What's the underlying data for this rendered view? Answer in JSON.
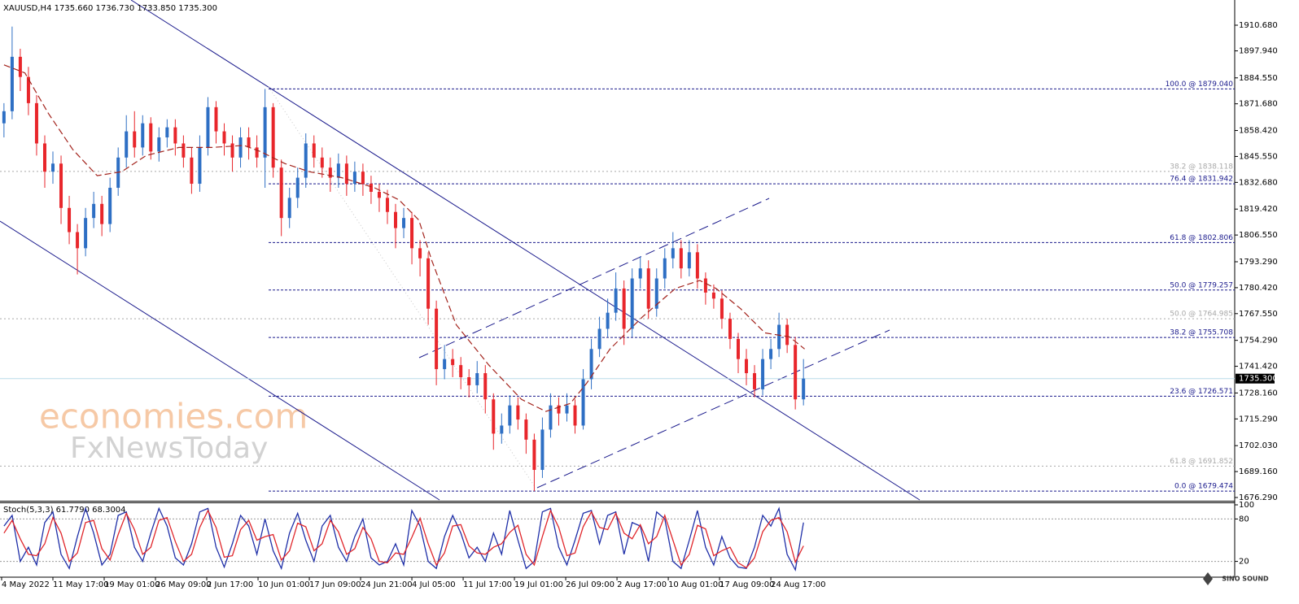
{
  "chart_data": [
    {
      "type": "candlestick",
      "title": "XAUUSD,H4 1735.660 1736.730 1733.850 1735.300",
      "x": [
        2,
        9,
        16,
        23,
        30,
        37,
        44,
        51,
        58,
        65,
        72,
        79,
        86,
        93,
        100,
        107,
        114,
        121,
        128,
        135,
        142,
        149,
        156,
        163,
        170,
        177,
        184,
        191,
        198,
        205,
        212,
        219,
        226,
        233,
        240,
        247,
        254,
        261,
        268,
        275,
        282,
        289,
        296,
        303,
        310,
        317,
        324,
        331,
        338,
        345,
        352,
        359,
        366,
        373,
        380,
        387,
        394,
        401,
        408,
        415,
        422,
        429,
        436,
        443,
        450,
        457,
        464,
        471,
        478,
        485,
        492,
        499,
        506,
        513,
        520,
        527,
        534,
        541,
        548,
        555,
        562,
        569,
        576,
        583,
        590,
        597,
        604,
        611,
        618,
        625,
        632,
        639,
        646,
        653,
        660,
        667,
        674,
        681,
        688
      ],
      "open": [
        1862,
        1868,
        1895,
        1885,
        1872,
        1852,
        1838,
        1842,
        1820,
        1808,
        1800,
        1815,
        1822,
        1812,
        1830,
        1845,
        1858,
        1850,
        1862,
        1848,
        1855,
        1860,
        1852,
        1845,
        1832,
        1850,
        1870,
        1858,
        1852,
        1845,
        1855,
        1850,
        1845,
        1870,
        1840,
        1815,
        1825,
        1835,
        1852,
        1845,
        1840,
        1835,
        1842,
        1832,
        1838,
        1832,
        1828,
        1825,
        1818,
        1810,
        1815,
        1800,
        1795,
        1770,
        1740,
        1745,
        1742,
        1736,
        1732,
        1738,
        1725,
        1708,
        1712,
        1722,
        1715,
        1705,
        1690,
        1710,
        1722,
        1718,
        1722,
        1712,
        1735,
        1750,
        1760,
        1768,
        1780,
        1760,
        1785,
        1790,
        1770,
        1785,
        1795,
        1800,
        1790,
        1798,
        1785,
        1778,
        1775,
        1765,
        1755,
        1745,
        1738,
        1730,
        1745,
        1750,
        1762,
        1752,
        1725
      ],
      "high": [
        1872,
        1910,
        1899,
        1890,
        1876,
        1856,
        1848,
        1846,
        1826,
        1812,
        1820,
        1828,
        1826,
        1835,
        1850,
        1866,
        1868,
        1866,
        1865,
        1860,
        1864,
        1864,
        1856,
        1850,
        1856,
        1875,
        1873,
        1862,
        1856,
        1860,
        1860,
        1856,
        1879.04,
        1872,
        1844,
        1830,
        1840,
        1857,
        1856,
        1850,
        1845,
        1847,
        1846,
        1843,
        1842,
        1836,
        1832,
        1829,
        1822,
        1820,
        1818,
        1804,
        1798,
        1774,
        1752,
        1750,
        1746,
        1740,
        1744,
        1742,
        1728,
        1718,
        1727,
        1726,
        1718,
        1708,
        1716,
        1728,
        1726,
        1728,
        1725,
        1740,
        1755,
        1766,
        1775,
        1788,
        1784,
        1790,
        1796,
        1794,
        1790,
        1800,
        1808,
        1804,
        1804,
        1802,
        1788,
        1782,
        1779,
        1768,
        1758,
        1750,
        1742,
        1750,
        1755,
        1768,
        1765,
        1756,
        1745
      ],
      "low": [
        1855,
        1864,
        1878,
        1866,
        1846,
        1830,
        1832,
        1812,
        1802,
        1787,
        1796,
        1810,
        1806,
        1808,
        1826,
        1840,
        1845,
        1846,
        1844,
        1843,
        1850,
        1846,
        1840,
        1827,
        1828,
        1846,
        1852,
        1846,
        1838,
        1840,
        1844,
        1840,
        1830,
        1835,
        1806,
        1810,
        1820,
        1830,
        1840,
        1835,
        1828,
        1830,
        1826,
        1828,
        1826,
        1822,
        1818,
        1812,
        1800,
        1805,
        1792,
        1786,
        1762,
        1732,
        1735,
        1736,
        1730,
        1726,
        1728,
        1718,
        1700,
        1703,
        1708,
        1710,
        1698,
        1679.47,
        1686,
        1706,
        1712,
        1714,
        1708,
        1710,
        1730,
        1746,
        1756,
        1764,
        1752,
        1756,
        1780,
        1765,
        1766,
        1780,
        1790,
        1785,
        1786,
        1780,
        1772,
        1770,
        1760,
        1750,
        1738,
        1732,
        1726,
        1727,
        1740,
        1746,
        1748,
        1720,
        1722
      ],
      "close": [
        1868,
        1895,
        1885,
        1872,
        1852,
        1838,
        1842,
        1820,
        1808,
        1800,
        1815,
        1822,
        1812,
        1830,
        1845,
        1858,
        1850,
        1862,
        1848,
        1855,
        1860,
        1852,
        1845,
        1832,
        1850,
        1870,
        1858,
        1852,
        1845,
        1855,
        1850,
        1845,
        1870,
        1840,
        1815,
        1825,
        1835,
        1852,
        1845,
        1840,
        1835,
        1842,
        1832,
        1838,
        1832,
        1828,
        1825,
        1818,
        1810,
        1815,
        1800,
        1795,
        1770,
        1740,
        1745,
        1742,
        1736,
        1732,
        1738,
        1725,
        1708,
        1712,
        1722,
        1715,
        1705,
        1690,
        1710,
        1722,
        1718,
        1722,
        1712,
        1735,
        1750,
        1760,
        1768,
        1780,
        1760,
        1785,
        1790,
        1770,
        1785,
        1795,
        1800,
        1790,
        1798,
        1785,
        1778,
        1775,
        1765,
        1755,
        1745,
        1738,
        1730,
        1745,
        1750,
        1762,
        1752,
        1725,
        1735.3
      ],
      "up_color": "#2e6fc4",
      "down_color": "#e8262b",
      "ma": {
        "x": [
          2,
          20,
          40,
          61,
          82,
          103,
          124,
          152,
          180,
          208,
          222,
          243,
          264,
          292,
          320,
          341,
          358,
          369,
          390,
          418,
          446,
          467,
          488,
          502,
          522,
          550,
          578,
          599,
          613,
          634,
          655,
          676,
          689
        ],
        "values": [
          1891,
          1887,
          1867,
          1849,
          1836,
          1838,
          1846,
          1850,
          1850,
          1851,
          1848,
          1842,
          1838,
          1835,
          1830,
          1824,
          1814,
          1794,
          1762,
          1742,
          1725,
          1719,
          1723,
          1733,
          1750,
          1766,
          1780,
          1784,
          1780,
          1770,
          1758,
          1756,
          1750
        ],
        "color": "#a3231c"
      },
      "xlim": [
        -1.4,
        1058
      ],
      "ylim": [
        1675.08,
        1923.19
      ],
      "yticks": [
        {
          "value": 1910.68,
          "label": "1910.680"
        },
        {
          "value": 1897.94,
          "label": "1897.940"
        },
        {
          "value": 1884.55,
          "label": "1884.550"
        },
        {
          "value": 1871.68,
          "label": "1871.680"
        },
        {
          "value": 1858.42,
          "label": "1858.420"
        },
        {
          "value": 1845.55,
          "label": "1845.550"
        },
        {
          "value": 1832.68,
          "label": "1832.680"
        },
        {
          "value": 1819.42,
          "label": "1819.420"
        },
        {
          "value": 1806.55,
          "label": "1806.550"
        },
        {
          "value": 1793.29,
          "label": "1793.290"
        },
        {
          "value": 1780.42,
          "label": "1780.420"
        },
        {
          "value": 1767.55,
          "label": "1767.550"
        },
        {
          "value": 1754.29,
          "label": "1754.290"
        },
        {
          "value": 1741.42,
          "label": "1741.420"
        },
        {
          "value": 1728.16,
          "label": "1728.160"
        },
        {
          "value": 1715.29,
          "label": "1715.290"
        },
        {
          "value": 1702.03,
          "label": "1702.030"
        },
        {
          "value": 1689.16,
          "label": "1689.160"
        },
        {
          "value": 1676.29,
          "label": "1676.290"
        }
      ],
      "fib_levels": [
        {
          "label": "100.0 @ 1879.040",
          "value": 1879.04,
          "color": "#1a1a8c",
          "style": "dashed"
        },
        {
          "label": "38.2 @ 1838.118",
          "value": 1838.118,
          "color": "#a8a8a8",
          "style": "dotted"
        },
        {
          "label": "76.4 @ 1831.942",
          "value": 1831.942,
          "color": "#1a1a8c",
          "style": "dashed"
        },
        {
          "label": "61.8 @ 1802.806",
          "value": 1802.806,
          "color": "#1a1a8c",
          "style": "dashed"
        },
        {
          "label": "50.0 @ 1779.257",
          "value": 1779.257,
          "color": "#1a1a8c",
          "style": "dashed"
        },
        {
          "label": "50.0 @ 1764.985",
          "value": 1764.985,
          "color": "#a8a8a8",
          "style": "dotted"
        },
        {
          "label": "38.2 @ 1755.708",
          "value": 1755.708,
          "color": "#1a1a8c",
          "style": "dashed"
        },
        {
          "label": "23.6 @ 1726.571",
          "value": 1726.571,
          "color": "#1a1a8c",
          "style": "dashed"
        },
        {
          "label": "61.8 @ 1691.852",
          "value": 1691.852,
          "color": "#a8a8a8",
          "style": "dotted"
        },
        {
          "label": "0.0 @ 1679.474",
          "value": 1679.474,
          "color": "#1a1a8c",
          "style": "dashed"
        }
      ],
      "current_price": {
        "value": 1735.3,
        "label": "1735.300",
        "color": "#b9dbe8"
      }
    },
    {
      "type": "line",
      "title": "Stoch(5,3,3) 61.7790 68.3004",
      "series": [
        {
          "color": "#1f2fa8",
          "values": [
            70,
            85,
            20,
            40,
            15,
            75,
            90,
            30,
            10,
            55,
            95,
            60,
            15,
            30,
            85,
            90,
            40,
            20,
            60,
            95,
            70,
            25,
            15,
            45,
            90,
            95,
            40,
            12,
            45,
            85,
            70,
            30,
            80,
            35,
            10,
            60,
            88,
            50,
            20,
            70,
            85,
            40,
            20,
            55,
            80,
            25,
            15,
            20,
            45,
            15,
            92,
            70,
            20,
            10,
            55,
            85,
            60,
            25,
            40,
            20,
            60,
            30,
            92,
            50,
            10,
            20,
            90,
            95,
            40,
            15,
            50,
            88,
            92,
            45,
            85,
            90,
            30,
            75,
            70,
            20,
            90,
            80,
            20,
            10,
            50,
            92,
            40,
            15,
            55,
            25,
            12,
            10,
            40,
            85,
            70,
            95,
            30,
            8,
            75
          ]
        },
        {
          "color": "#e0262b",
          "values": [
            60,
            78,
            52,
            30,
            28,
            45,
            82,
            60,
            20,
            32,
            75,
            78,
            38,
            22,
            58,
            88,
            65,
            30,
            40,
            78,
            82,
            48,
            20,
            30,
            68,
            92,
            68,
            26,
            28,
            65,
            78,
            50,
            55,
            58,
            22,
            35,
            74,
            69,
            35,
            45,
            78,
            62,
            30,
            38,
            68,
            52,
            20,
            18,
            32,
            30,
            54,
            81,
            45,
            15,
            32,
            70,
            72,
            42,
            32,
            30,
            40,
            45,
            61,
            71,
            30,
            15,
            55,
            92,
            68,
            28,
            32,
            69,
            90,
            68,
            65,
            88,
            60,
            52,
            72,
            45,
            55,
            85,
            50,
            15,
            30,
            71,
            66,
            28,
            35,
            40,
            18,
            11,
            25,
            62,
            78,
            82,
            62,
            19,
            42
          ]
        }
      ],
      "xlim": [
        -1.4,
        1058
      ],
      "ylim": [
        0,
        100
      ],
      "yticks": [
        100,
        80,
        20
      ],
      "levels": [
        80,
        20
      ],
      "xticks": [
        {
          "value": 0,
          "label": "4 May 2022"
        },
        {
          "value": 44,
          "label": "11 May 17:00"
        },
        {
          "value": 88,
          "label": "19 May 01:00"
        },
        {
          "value": 132,
          "label": "26 May 09:00"
        },
        {
          "value": 176,
          "label": "2 Jun 17:00"
        },
        {
          "value": 220,
          "label": "10 Jun 01:00"
        },
        {
          "value": 264,
          "label": "17 Jun 09:00"
        },
        {
          "value": 308,
          "label": "24 Jun 21:00"
        },
        {
          "value": 352,
          "label": "4 Jul 05:00"
        },
        {
          "value": 396,
          "label": "11 Jul 17:00"
        },
        {
          "value": 440,
          "label": "19 Jul 01:00"
        },
        {
          "value": 484,
          "label": "26 Jul 09:00"
        },
        {
          "value": 528,
          "label": "2 Aug 17:00"
        },
        {
          "value": 572,
          "label": "10 Aug 01:00"
        },
        {
          "value": 616,
          "label": "17 Aug 09:00"
        },
        {
          "value": 660,
          "label": "24 Aug 17:00"
        }
      ]
    }
  ],
  "watermarks": {
    "brand": "economies.com",
    "sub": "FxNewsToday",
    "logo": "SINO SOUND"
  }
}
